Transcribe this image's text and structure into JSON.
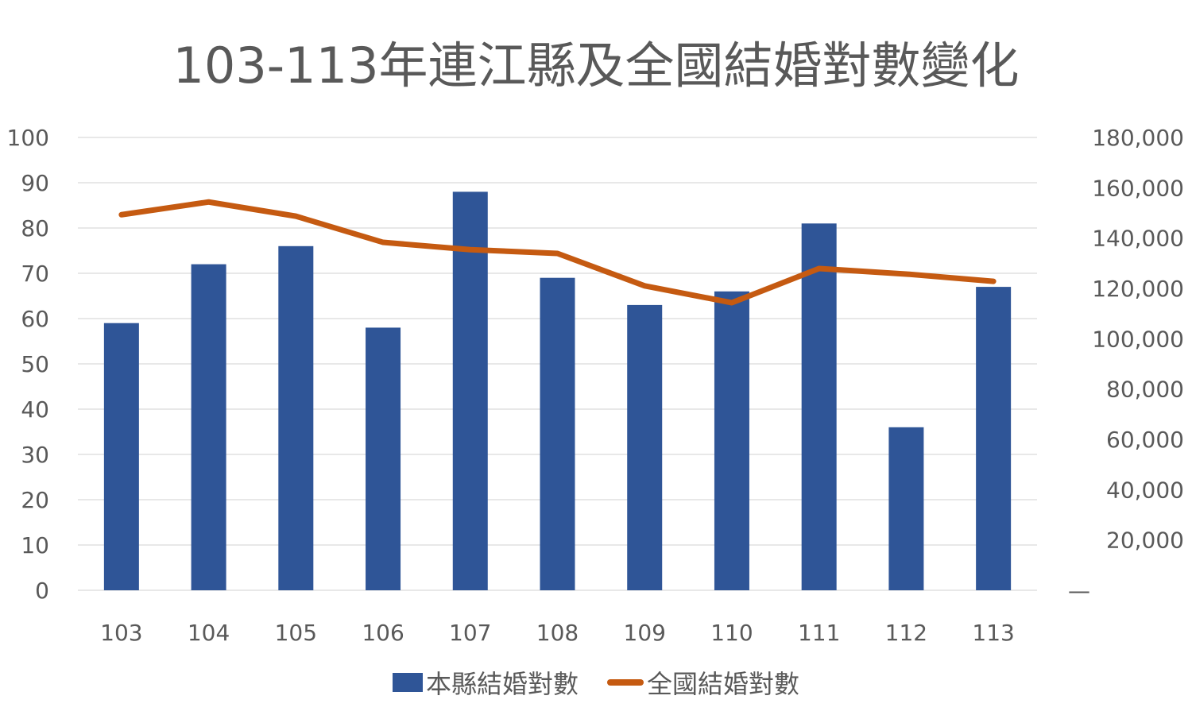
{
  "colors": {
    "bar": "#2F5597",
    "line": "#C55A11",
    "grid": "#D9D9D9",
    "text": "#595959"
  },
  "chart_data": {
    "type": "bar+line",
    "title": "103-113年連江縣及全國結婚對數變化",
    "categories": [
      "103",
      "104",
      "105",
      "106",
      "107",
      "108",
      "109",
      "110",
      "111",
      "112",
      "113"
    ],
    "series": [
      {
        "name": "本縣結婚對數",
        "type": "bar",
        "axis": "left",
        "values": [
          59,
          72,
          76,
          58,
          88,
          69,
          63,
          66,
          81,
          36,
          67
        ]
      },
      {
        "name": "全國結婚對數",
        "type": "line",
        "axis": "right",
        "values": [
          149287,
          154346,
          148700,
          138300,
          135400,
          133900,
          121000,
          114300,
          127900,
          125700,
          122800
        ]
      }
    ],
    "left_axis": {
      "ylim": [
        0,
        100
      ],
      "ticks": [
        "0",
        "10",
        "20",
        "30",
        "40",
        "50",
        "60",
        "70",
        "80",
        "90",
        "100"
      ]
    },
    "right_axis": {
      "ylim": [
        0,
        180000
      ],
      "ticks": [
        "—",
        "20,000",
        "40,000",
        "60,000",
        "80,000",
        "100,000",
        "120,000",
        "140,000",
        "160,000",
        "180,000"
      ]
    },
    "grid": true,
    "legend": "bottom"
  }
}
